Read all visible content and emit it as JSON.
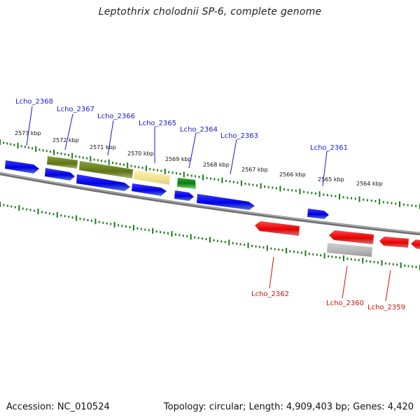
{
  "title": "Leptothrix cholodnii SP-6, complete genome",
  "footer": {
    "accession": "Accession: NC_010524",
    "summary": "Topology: circular; Length: 4,909,403 bp; Genes: 4,420"
  },
  "colors": {
    "forward_label": "#1a1acc",
    "reverse_label": "#cc1111",
    "tick": "#1a7a1a",
    "backbone": "#8a8a8a"
  },
  "coordinates": {
    "unit": "kbp",
    "labels": [
      {
        "value": 2573,
        "text": "2573 kbp"
      },
      {
        "value": 2572,
        "text": "2572 kbp"
      },
      {
        "value": 2571,
        "text": "2571 kbp"
      },
      {
        "value": 2570,
        "text": "2570 kbp"
      },
      {
        "value": 2569,
        "text": "2569 kbp"
      },
      {
        "value": 2568,
        "text": "2568 kbp"
      },
      {
        "value": 2567,
        "text": "2567 kbp"
      },
      {
        "value": 2566,
        "text": "2566 kbp"
      },
      {
        "value": 2565,
        "text": "2565 kbp"
      },
      {
        "value": 2564,
        "text": "2564 kbp"
      }
    ]
  },
  "gene_labels": [
    {
      "name": "Lcho_2368",
      "strand": "forward"
    },
    {
      "name": "Lcho_2367",
      "strand": "forward"
    },
    {
      "name": "Lcho_2366",
      "strand": "forward"
    },
    {
      "name": "Lcho_2365",
      "strand": "forward"
    },
    {
      "name": "Lcho_2364",
      "strand": "forward"
    },
    {
      "name": "Lcho_2363",
      "strand": "forward"
    },
    {
      "name": "Lcho_2361",
      "strand": "forward"
    },
    {
      "name": "Lcho_2362",
      "strand": "reverse"
    },
    {
      "name": "Lcho_2360",
      "strand": "reverse"
    },
    {
      "name": "Lcho_2359",
      "strand": "reverse"
    }
  ]
}
